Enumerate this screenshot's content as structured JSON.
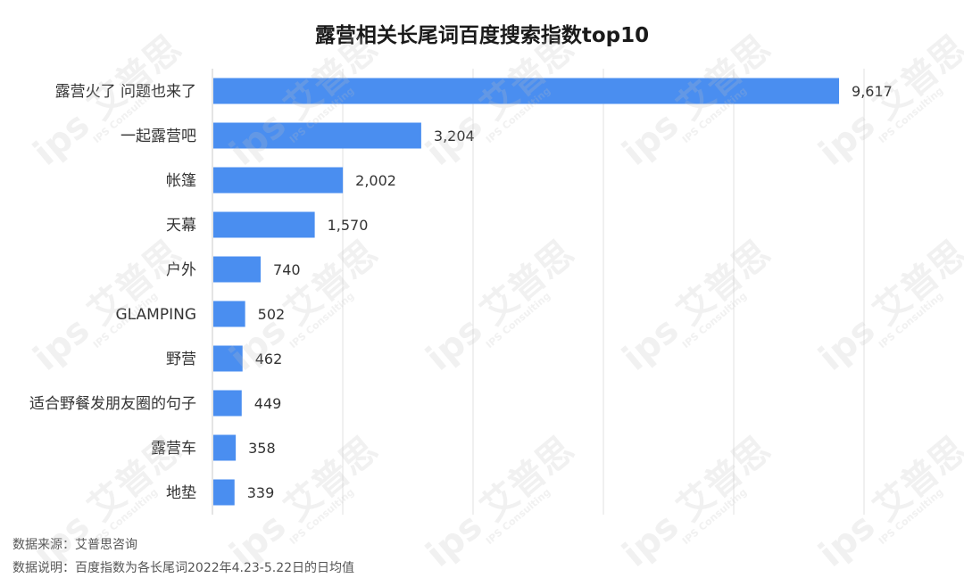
{
  "chart_data": {
    "type": "bar",
    "orientation": "horizontal",
    "title": "露营相关长尾词百度搜索指数top10",
    "categories": [
      "露营火了 问题也来了",
      "一起露营吧",
      "帐篷",
      "天幕",
      "户外",
      "GLAMPING",
      "野营",
      "适合野餐发朋友圈的句子",
      "露营车",
      "地垫"
    ],
    "values": [
      9617,
      3204,
      2002,
      1570,
      740,
      502,
      462,
      449,
      358,
      339
    ],
    "value_labels": [
      "9,617",
      "3,204",
      "2,002",
      "1,570",
      "740",
      "502",
      "462",
      "449",
      "358",
      "339"
    ],
    "xlim": [
      0,
      10000
    ],
    "grid": true,
    "bar_color": "#4a8ef0"
  },
  "notes": {
    "source": "数据来源：艾普思咨询",
    "method": "数据说明：百度指数为各长尾词2022年4.23-5.22日的日均值"
  },
  "watermark": {
    "brand": "艾普思",
    "sub": "IPS Consulting"
  }
}
